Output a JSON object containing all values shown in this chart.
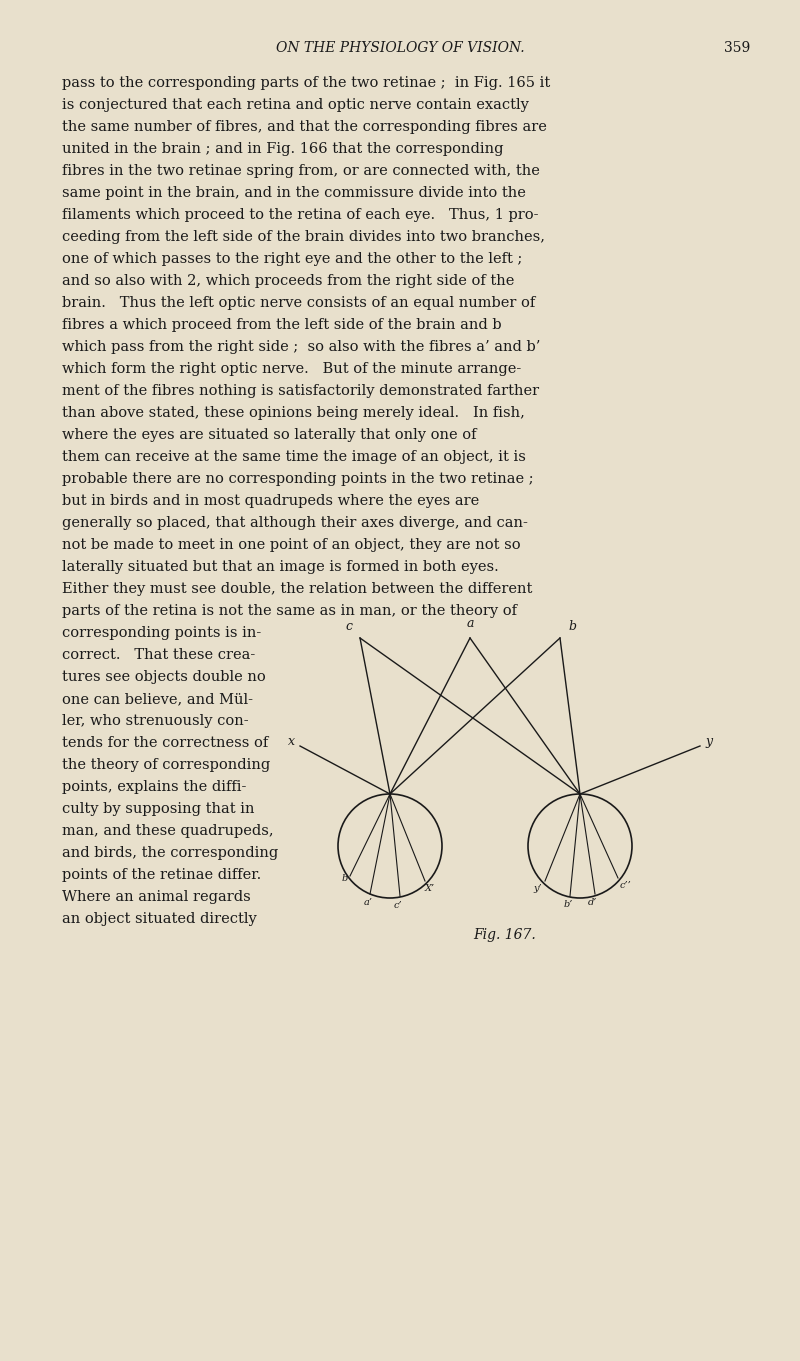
{
  "background_color": "#e8e0cc",
  "text_color": "#1a1a1a",
  "page_header": "ON THE PHYSIOLOGY OF VISION.",
  "page_number": "359",
  "body_text": [
    "pass to the corresponding parts of the two retinae ;  in Fig. 165 it",
    "is conjectured that each retina and optic nerve contain exactly",
    "the same number of fibres, and that the corresponding fibres are",
    "united in the brain ; and in Fig. 166 that the corresponding",
    "fibres in the two retinae spring from, or are connected with, the",
    "same point in the brain, and in the commissure divide into the",
    "filaments which proceed to the retina of each eye.   Thus, 1 pro-",
    "ceeding from the left side of the brain divides into two branches,",
    "one of which passes to the right eye and the other to the left ;",
    "and so also with 2, which proceeds from the right side of the",
    "brain.   Thus the left optic nerve consists of an equal number of",
    "fibres a which proceed from the left side of the brain and b",
    "which pass from the right side ;  so also with the fibres a’ and b’",
    "which form the right optic nerve.   But of the minute arrange-",
    "ment of the fibres nothing is satisfactorily demonstrated farther",
    "than above stated, these opinions being merely ideal.   In fish,",
    "where the eyes are situated so laterally that only one of",
    "them can receive at the same time the image of an object, it is",
    "probable there are no corresponding points in the two retinae ;",
    "but in birds and in most quadrupeds where the eyes are",
    "generally so placed, that although their axes diverge, and can-",
    "not be made to meet in one point of an object, they are not so",
    "laterally situated but that an image is formed in both eyes.",
    "Either they must see double, the relation between the different",
    "parts of the retina is not the same as in man, or the theory of"
  ],
  "left_col_text": [
    "corresponding points is in-",
    "correct.   That these crea-",
    "tures see objects double no",
    "one can believe, and Mül-",
    "ler, who strenuously con-",
    "tends for the correctness of",
    "the theory of corresponding",
    "points, explains the diffi-",
    "culty by supposing that in",
    "man, and these quadrupeds,",
    "and birds, the corresponding",
    "points of the retinae differ.",
    "Where an animal regards",
    "an object situated directly"
  ],
  "fig_caption": "Fig. 167.",
  "fig_label_a": "a",
  "fig_label_b": "b",
  "fig_label_c": "c",
  "fig_label_x": "x",
  "fig_label_y": "y",
  "fig_label_b_prime": "b",
  "fig_label_c_prime": "c’",
  "fig_label_x_prime": "X’",
  "fig_label_a_prime": "a’",
  "fig_label_y_prime": "y’",
  "fig_label_h_prime": "b’",
  "fig_label_d_prime": "d’",
  "fig_label_c_double": "c’’"
}
